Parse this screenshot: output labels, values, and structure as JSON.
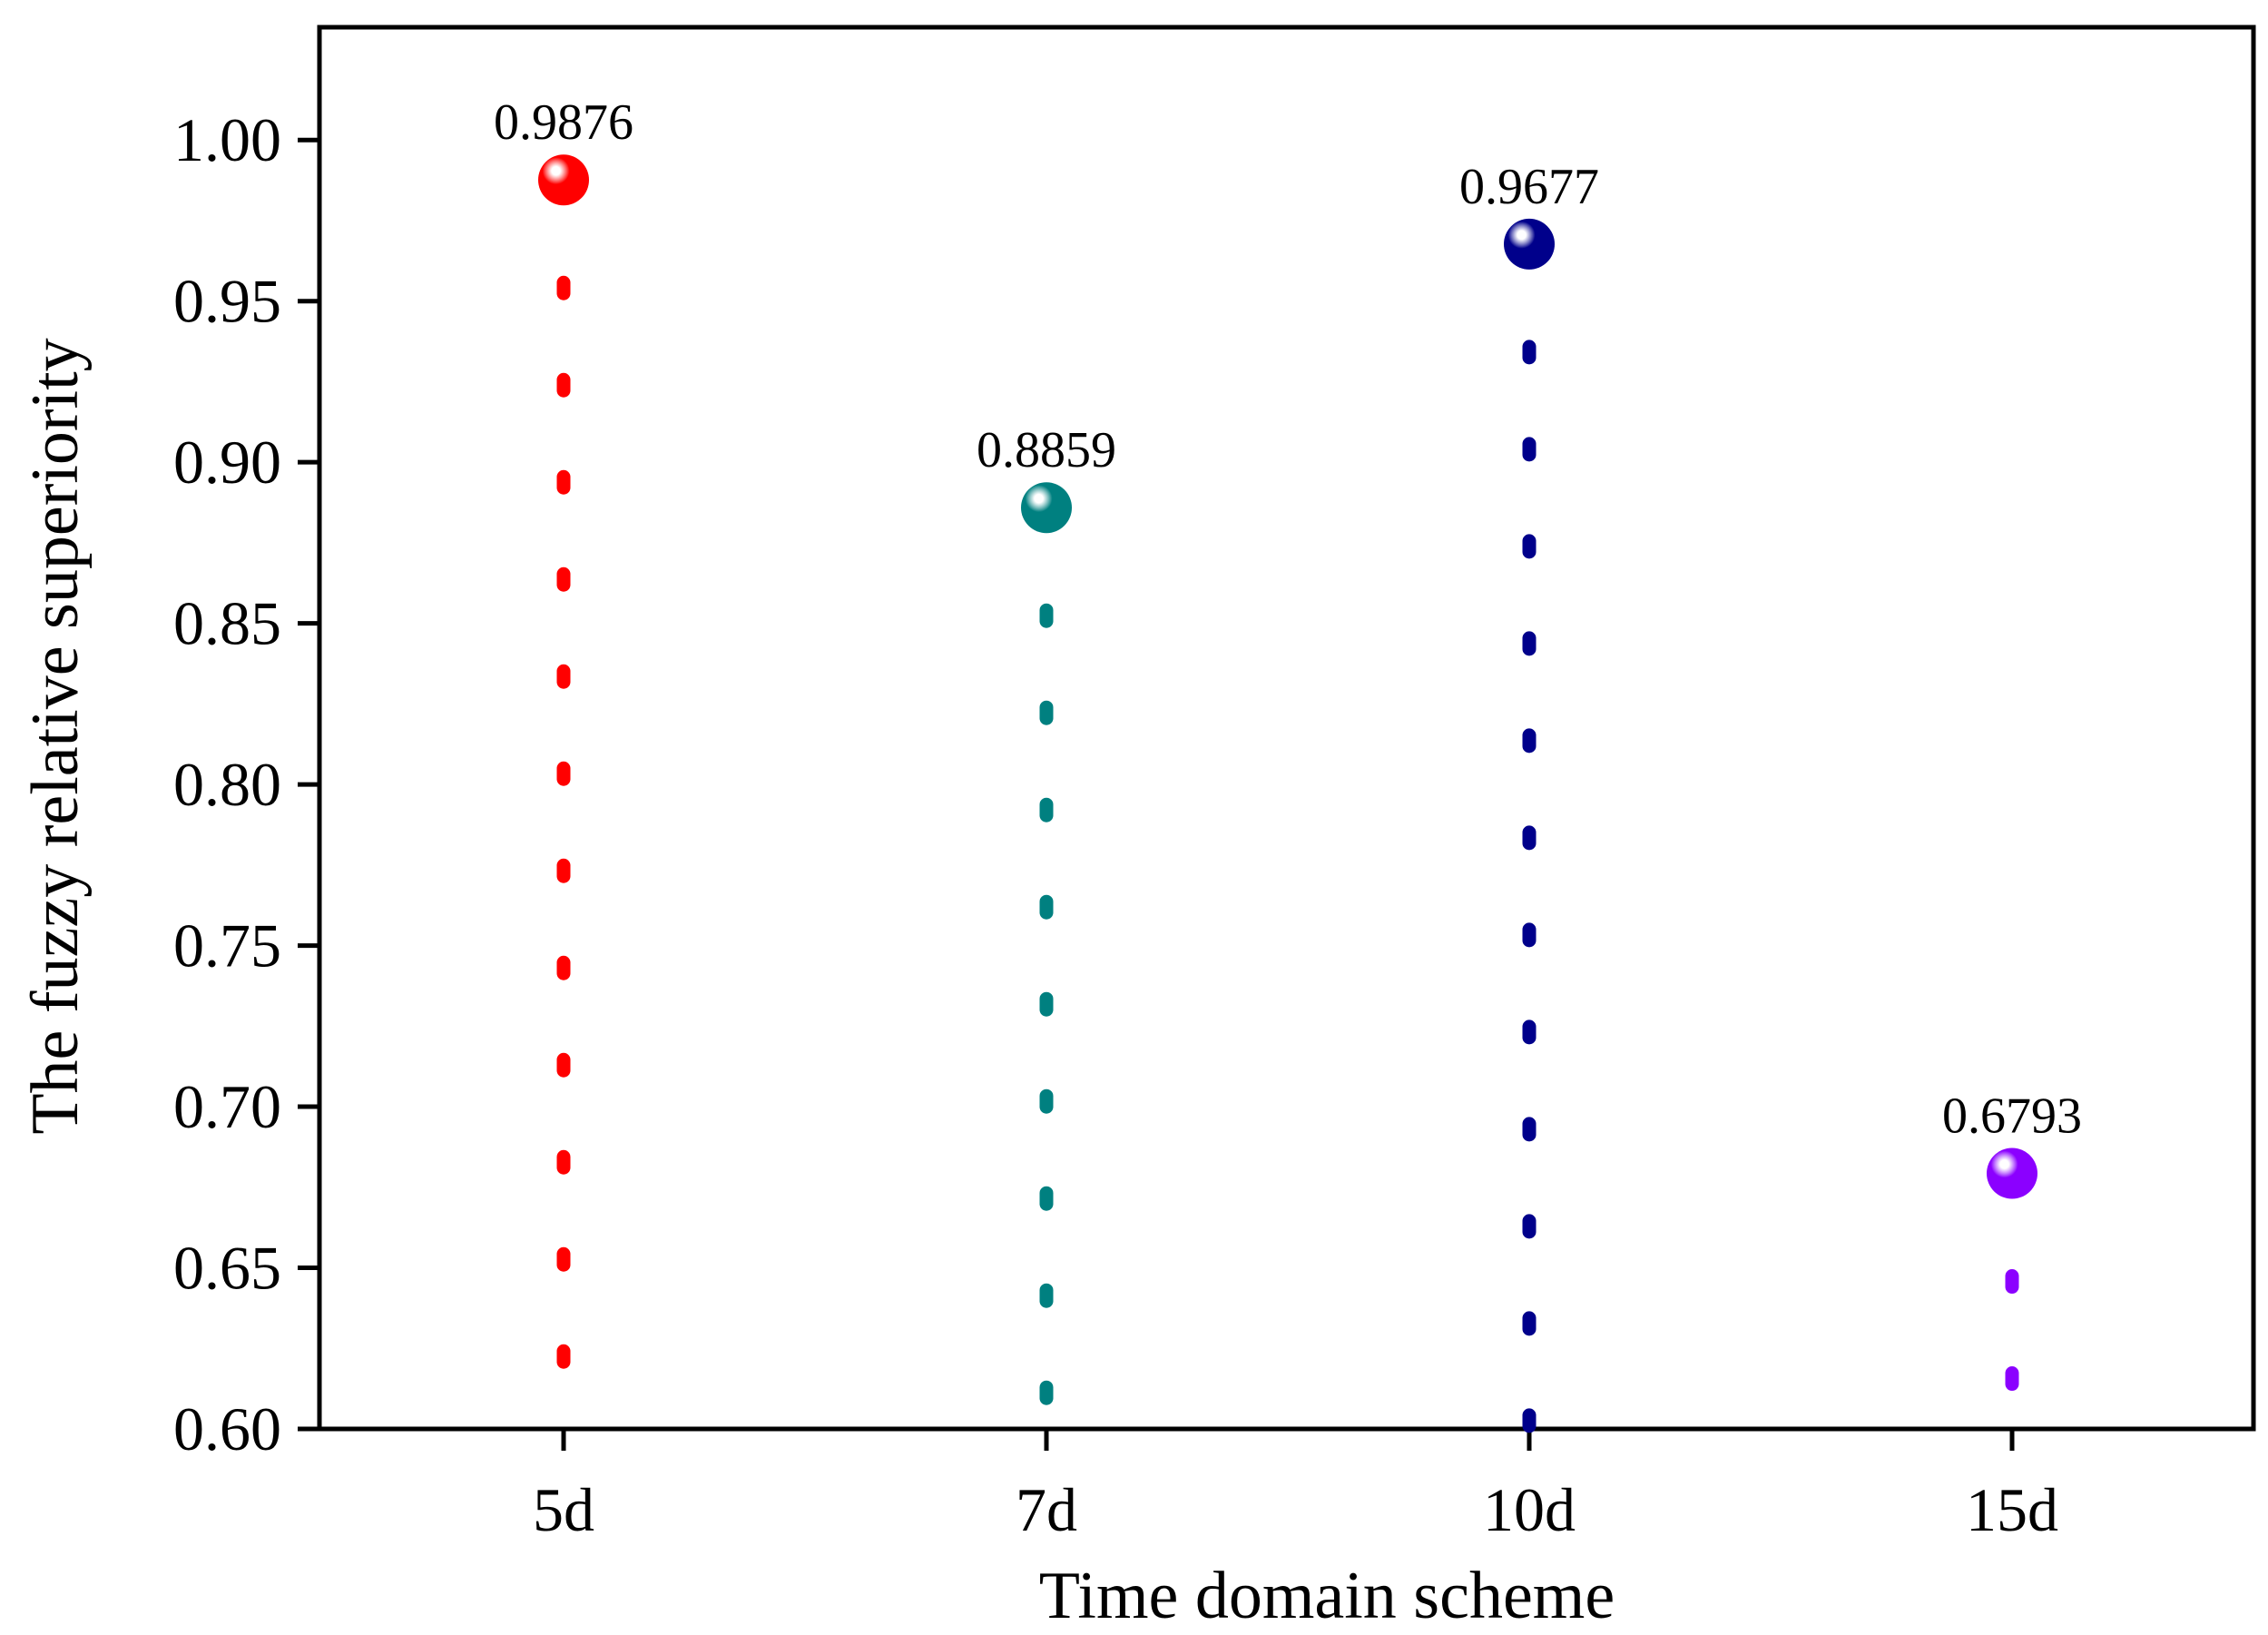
{
  "chart_data": {
    "type": "lollipop",
    "title": "",
    "xlabel": "Time domain scheme",
    "ylabel": "The fuzzy relative superiority",
    "categories": [
      "5d",
      "7d",
      "10d",
      "15d"
    ],
    "values": [
      0.9876,
      0.8859,
      0.9677,
      0.6793
    ],
    "value_labels": [
      "0.9876",
      "0.8859",
      "0.9677",
      "0.6793"
    ],
    "colors": [
      "#ff0000",
      "#008080",
      "#00008b",
      "#8b00ff"
    ],
    "ylim": [
      0.6,
      1.035
    ],
    "yticks": [
      0.6,
      0.65,
      0.7,
      0.75,
      0.8,
      0.85,
      0.9,
      0.95,
      1.0
    ],
    "ytick_labels": [
      "0.60",
      "0.65",
      "0.70",
      "0.75",
      "0.80",
      "0.85",
      "0.90",
      "0.95",
      "1.00"
    ],
    "grid": false,
    "legend": "none"
  }
}
